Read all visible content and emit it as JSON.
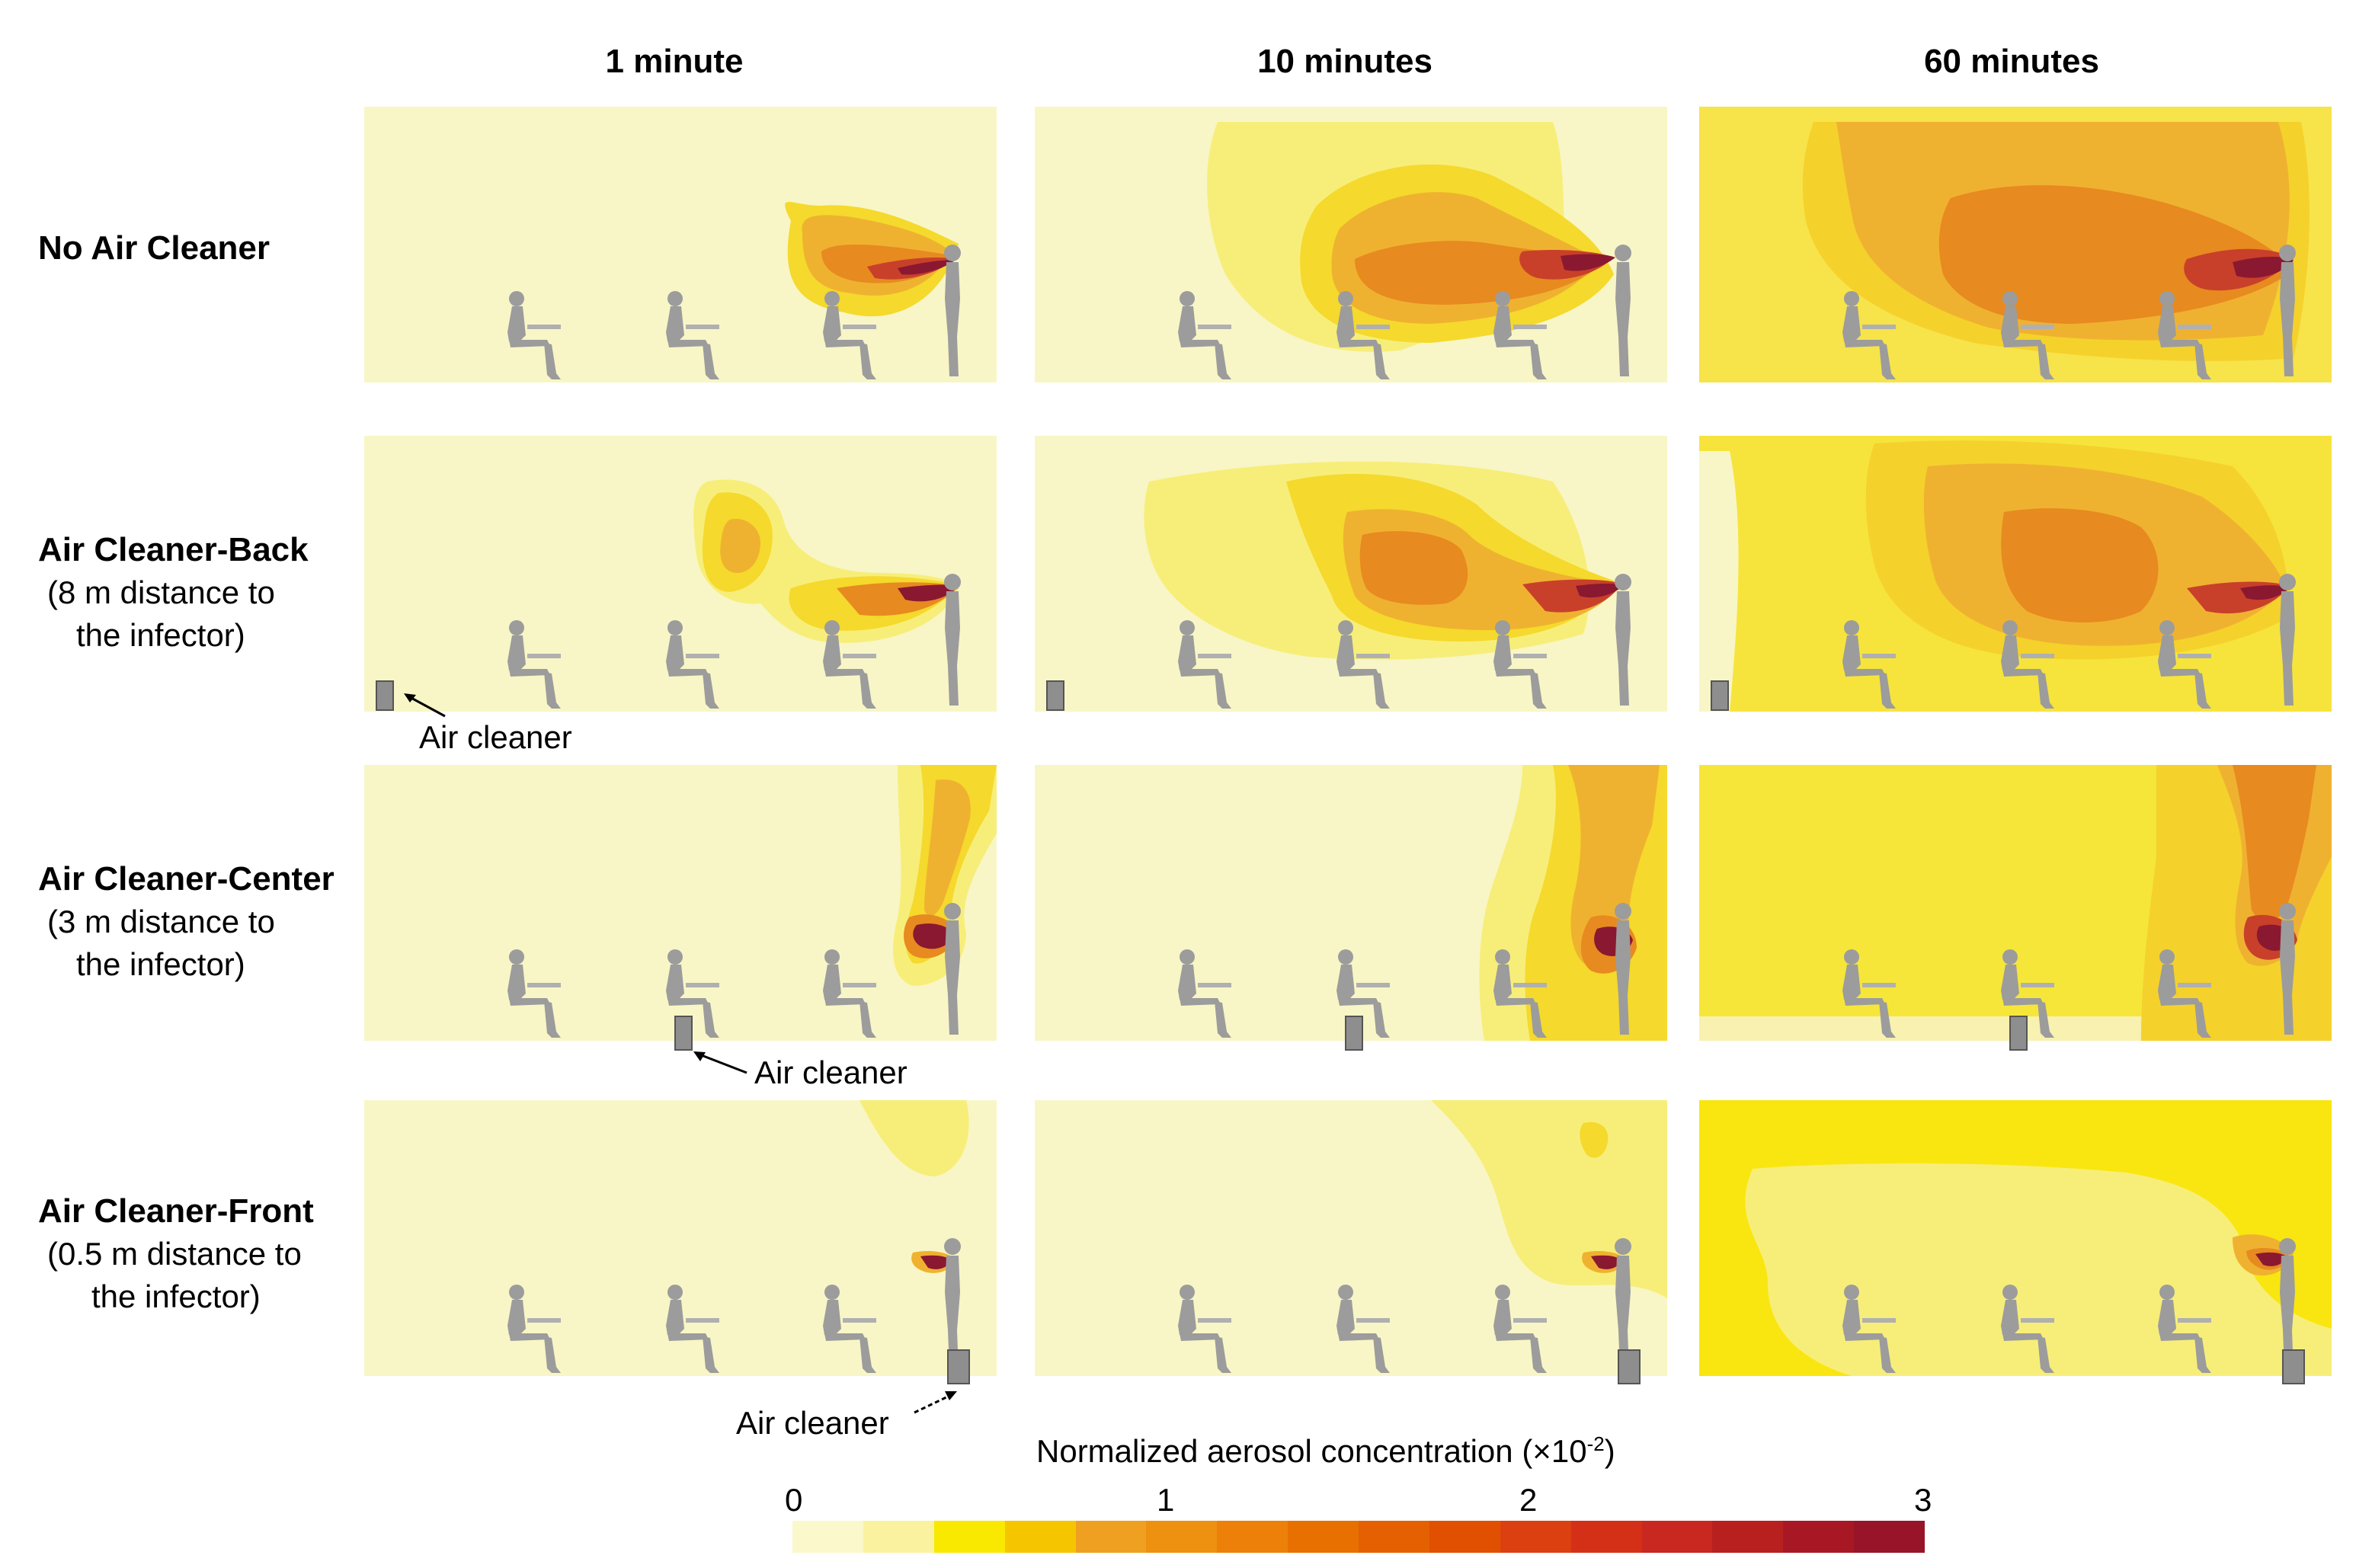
{
  "columns": [
    "1 minute",
    "10 minutes",
    "60 minutes"
  ],
  "rows": [
    {
      "title": "No Air Cleaner",
      "subtitle": ""
    },
    {
      "title": "Air Cleaner-Back",
      "subtitle": "(8 m distance to the infector)"
    },
    {
      "title": "Air Cleaner-Center",
      "subtitle": "(3 m distance to the infector)"
    },
    {
      "title": "Air Cleaner-Front",
      "subtitle": "(0.5 m distance to the infector)"
    }
  ],
  "subtitle_lines": {
    "back": [
      "(8 m distance to",
      "the infector)"
    ],
    "center": [
      "(3 m distance to",
      "the infector)"
    ],
    "front": [
      "(0.5 m distance to",
      "the infector)"
    ]
  },
  "annotations": {
    "back": "Air cleaner",
    "center": "Air cleaner",
    "front": "Air cleaner"
  },
  "colorbar": {
    "title": "Normalized aerosol concentration (×10",
    "title_exponent": "-2",
    "title_end": ")",
    "ticks": [
      "0",
      "1",
      "2",
      "3"
    ],
    "range": [
      0,
      3
    ],
    "colors": [
      "#fbf8cb",
      "#fbf2a0",
      "#f9e800",
      "#f5c600",
      "#f0a020",
      "#ee9010",
      "#ec8008",
      "#e87000",
      "#e46000",
      "#e05000",
      "#dc4010",
      "#d43018",
      "#c82820",
      "#b82020",
      "#a81824",
      "#981428"
    ]
  },
  "colors": {
    "background": "#f8f6c6",
    "low": "#f7ee7a",
    "mid_low": "#f5d92c",
    "mid": "#efb230",
    "high": "#e78a20",
    "very_high": "#d25a26",
    "peak": "#8a1830",
    "figure": "#9c9c9c",
    "cleaner": "#8e8e8e"
  }
}
